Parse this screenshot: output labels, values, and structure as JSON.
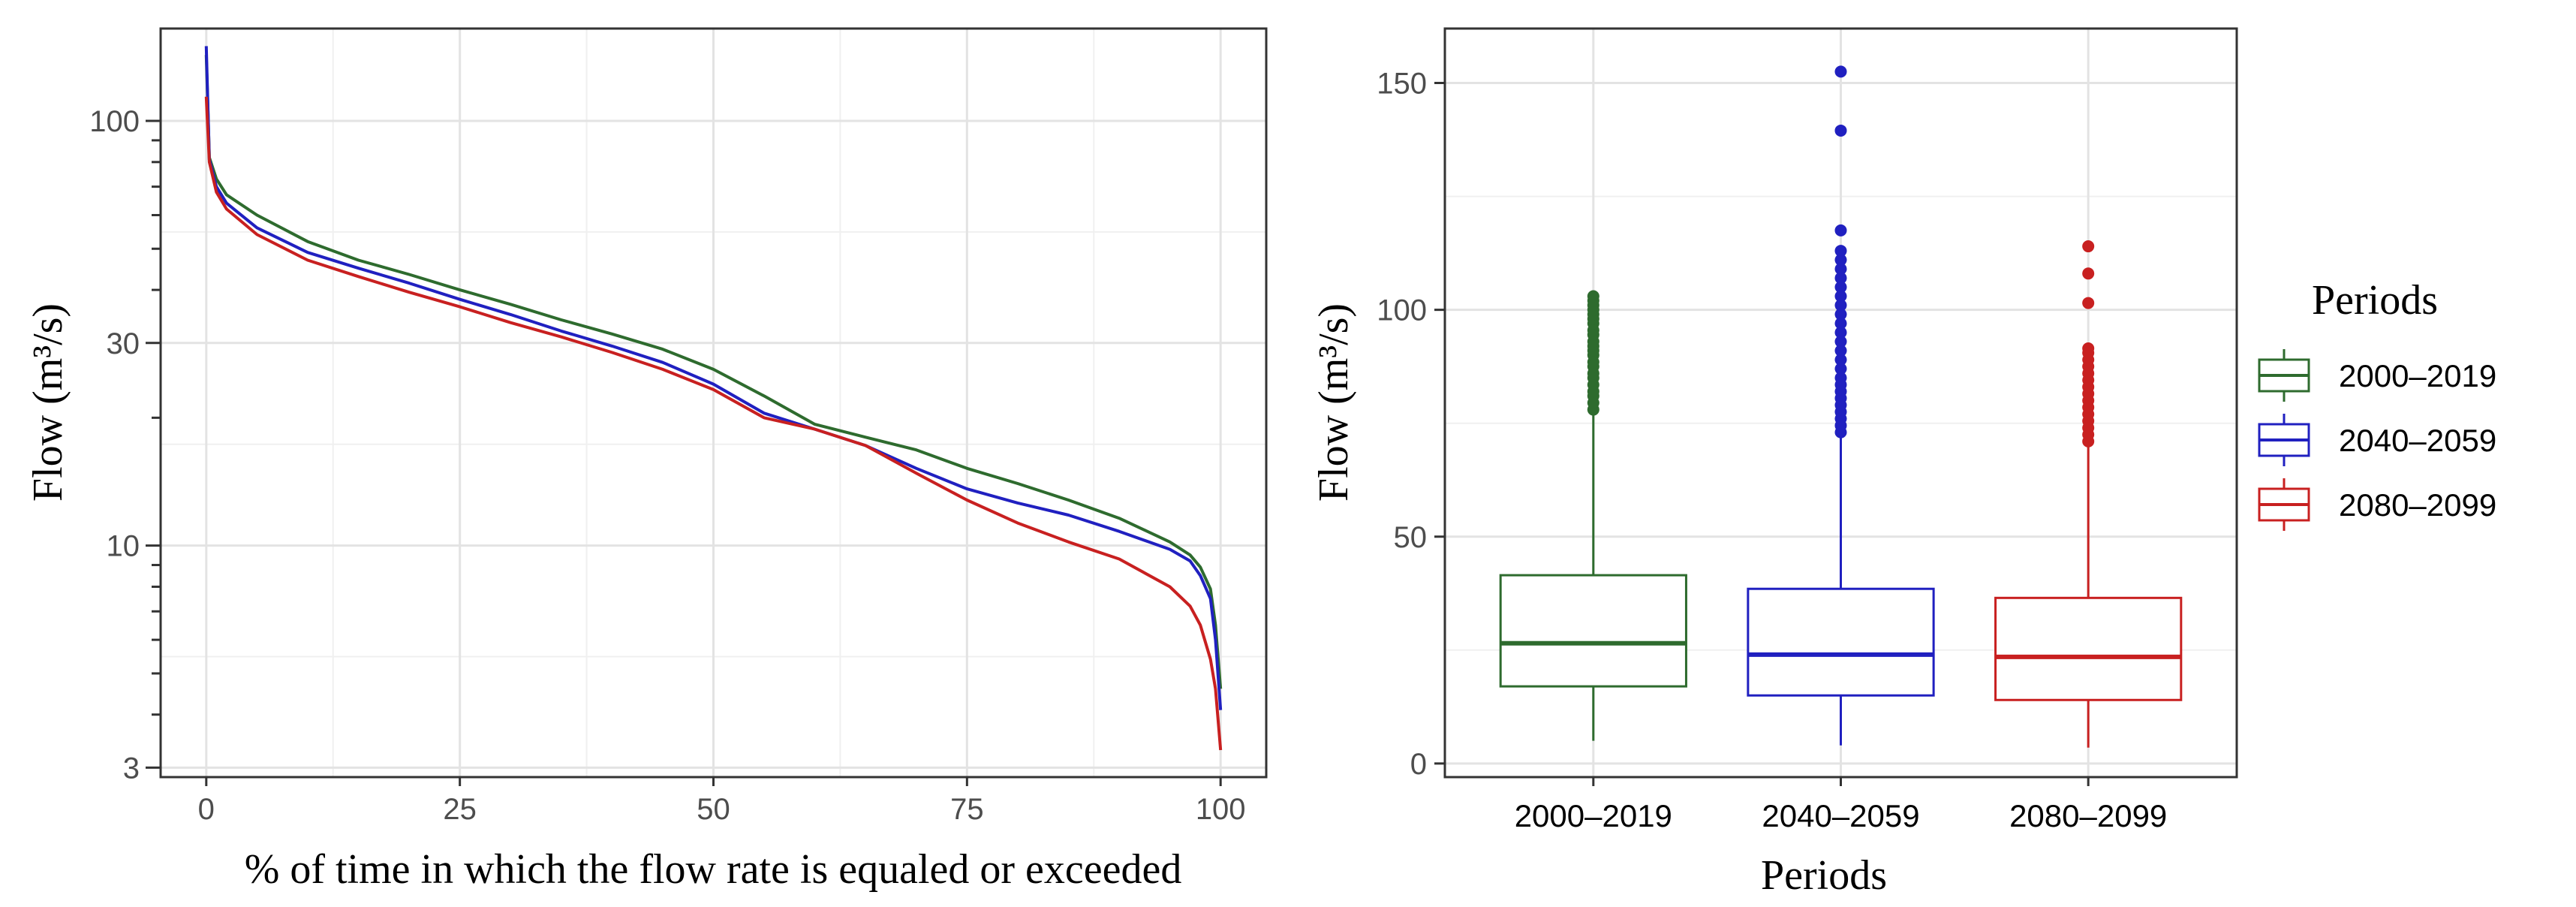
{
  "chart_data": [
    {
      "type": "line",
      "title": "",
      "xlabel": "% of time in which the flow rate is equaled or exceeded",
      "ylabel": "Flow (m³/s)",
      "yscale": "log10",
      "xlim": [
        -4.5,
        104.5
      ],
      "ylim": [
        2.85,
        165
      ],
      "xticks": [
        0,
        25,
        50,
        75,
        100
      ],
      "xtick_labels": [
        "0",
        "25",
        "50",
        "75",
        "100"
      ],
      "yticks": [
        3,
        10,
        30,
        100
      ],
      "ytick_labels": [
        "3",
        "10",
        "30",
        "100"
      ],
      "grid": true,
      "series": [
        {
          "name": "2000-2019",
          "color": "#2e6b2e",
          "x": [
            0,
            0.3,
            1,
            2,
            5,
            10,
            15,
            20,
            25,
            30,
            35,
            40,
            45,
            50,
            55,
            60,
            65,
            70,
            75,
            80,
            85,
            90,
            95,
            97,
            98,
            99,
            99.5,
            100
          ],
          "y": [
            143,
            82,
            73,
            67,
            60,
            52,
            47,
            43.5,
            40,
            37,
            34,
            31.5,
            29,
            26,
            22.5,
            19.3,
            18,
            16.8,
            15.2,
            14,
            12.8,
            11.6,
            10.2,
            9.5,
            8.9,
            7.9,
            6.5,
            4.6
          ]
        },
        {
          "name": "2040-2059",
          "color": "#2020c0",
          "x": [
            0,
            0.3,
            1,
            2,
            5,
            10,
            15,
            20,
            25,
            30,
            35,
            40,
            45,
            50,
            55,
            60,
            65,
            70,
            75,
            80,
            85,
            90,
            95,
            97,
            98,
            99,
            99.5,
            100
          ],
          "y": [
            150,
            81,
            70,
            64,
            56,
            49,
            45,
            41.5,
            38,
            35,
            32,
            29.5,
            27,
            24,
            20.5,
            18.8,
            17.2,
            15.2,
            13.6,
            12.6,
            11.8,
            10.8,
            9.8,
            9.2,
            8.5,
            7.5,
            6,
            4.1
          ]
        },
        {
          "name": "2080-2099",
          "color": "#c82020",
          "x": [
            0,
            0.3,
            1,
            2,
            5,
            10,
            15,
            20,
            25,
            30,
            35,
            40,
            45,
            50,
            55,
            60,
            65,
            70,
            75,
            80,
            85,
            90,
            95,
            97,
            98,
            99,
            99.5,
            100
          ],
          "y": [
            114,
            80,
            68,
            62,
            54,
            47,
            43,
            39.5,
            36.5,
            33.5,
            31,
            28.5,
            26,
            23.3,
            20,
            18.8,
            17.2,
            14.8,
            12.8,
            11.3,
            10.2,
            9.3,
            8,
            7.2,
            6.5,
            5.4,
            4.6,
            3.3
          ]
        }
      ]
    },
    {
      "type": "box",
      "title": "",
      "xlabel": "Periods",
      "ylabel": "Flow (m³/s)",
      "ylim": [
        -3,
        162
      ],
      "yticks": [
        0,
        50,
        100,
        150
      ],
      "ytick_labels": [
        "0",
        "50",
        "100",
        "150"
      ],
      "grid": true,
      "categories": [
        "2000–2019",
        "2040–2059",
        "2080–2099"
      ],
      "legend": {
        "title": "Periods",
        "position": "right"
      },
      "boxes": [
        {
          "name": "2000–2019",
          "color": "#2e6b2e",
          "whisker_low": 5,
          "q1": 17,
          "median": 26.5,
          "q3": 41.5,
          "whisker_high": 77,
          "outliers": [
            78,
            79.5,
            81,
            82,
            83.5,
            85,
            86,
            87.5,
            88.5,
            90,
            91,
            92,
            93,
            94.5,
            95.5,
            97,
            98,
            99,
            100,
            101,
            102,
            103
          ]
        },
        {
          "name": "2040–2059",
          "color": "#2020c0",
          "whisker_low": 4,
          "q1": 15,
          "median": 24,
          "q3": 38.5,
          "whisker_high": 72,
          "outliers": [
            73,
            74.5,
            76,
            77.5,
            79,
            80.5,
            82,
            83.5,
            85,
            87,
            89,
            91,
            93,
            95,
            97,
            99,
            101,
            103,
            105,
            107,
            109,
            111,
            113,
            117.5,
            139.5,
            152.5
          ]
        },
        {
          "name": "2080–2099",
          "color": "#c82020",
          "whisker_low": 3.5,
          "q1": 14,
          "median": 23.5,
          "q3": 36.5,
          "whisker_high": 70,
          "outliers": [
            71,
            72.5,
            74,
            75.5,
            77,
            78.5,
            80,
            81.5,
            83,
            84.5,
            86,
            87.5,
            89,
            90.5,
            91.5,
            101.5,
            108,
            114
          ]
        }
      ]
    }
  ]
}
